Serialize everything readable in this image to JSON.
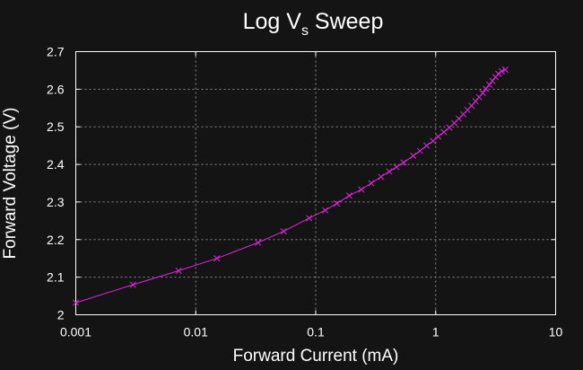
{
  "chart_data": {
    "type": "line",
    "title_main": "Log V",
    "title_sub": "s",
    "title_tail": " Sweep",
    "xlabel": "Forward Current (mA)",
    "ylabel": "Forward Voltage (V)",
    "xscale": "log",
    "xlim": [
      0.001,
      10
    ],
    "ylim": [
      2.0,
      2.7
    ],
    "grid": true,
    "legend": "none",
    "x_ticks": [
      0.001,
      0.01,
      0.1,
      1,
      10
    ],
    "x_tick_labels": [
      "0.001",
      "0.01",
      "0.1",
      "1",
      "10"
    ],
    "y_ticks": [
      2.0,
      2.1,
      2.2,
      2.3,
      2.4,
      2.5,
      2.6,
      2.7
    ],
    "y_tick_labels": [
      "2",
      "2.1",
      "2.2",
      "2.3",
      "2.4",
      "2.5",
      "2.6",
      "2.7"
    ],
    "colors": {
      "background": "#141414",
      "series": "#e024e0",
      "grid": "#8a8a8a",
      "text": "#ffffff"
    },
    "series": [
      {
        "marker": "x",
        "points": [
          [
            0.001,
            2.032
          ],
          [
            0.003,
            2.08
          ],
          [
            0.0072,
            2.117
          ],
          [
            0.015,
            2.15
          ],
          [
            0.033,
            2.192
          ],
          [
            0.054,
            2.222
          ],
          [
            0.088,
            2.257
          ],
          [
            0.12,
            2.278
          ],
          [
            0.15,
            2.296
          ],
          [
            0.19,
            2.317
          ],
          [
            0.24,
            2.333
          ],
          [
            0.29,
            2.35
          ],
          [
            0.35,
            2.367
          ],
          [
            0.41,
            2.381
          ],
          [
            0.47,
            2.393
          ],
          [
            0.54,
            2.405
          ],
          [
            0.65,
            2.423
          ],
          [
            0.74,
            2.436
          ],
          [
            0.84,
            2.45
          ],
          [
            0.95,
            2.462
          ],
          [
            1.05,
            2.474
          ],
          [
            1.17,
            2.486
          ],
          [
            1.3,
            2.498
          ],
          [
            1.43,
            2.51
          ],
          [
            1.56,
            2.522
          ],
          [
            1.7,
            2.533
          ],
          [
            1.84,
            2.545
          ],
          [
            1.99,
            2.556
          ],
          [
            2.15,
            2.568
          ],
          [
            2.3,
            2.579
          ],
          [
            2.47,
            2.59
          ],
          [
            2.62,
            2.601
          ],
          [
            2.8,
            2.612
          ],
          [
            2.97,
            2.622
          ],
          [
            3.15,
            2.632
          ],
          [
            3.33,
            2.641
          ],
          [
            3.55,
            2.648
          ],
          [
            3.8,
            2.652
          ]
        ]
      }
    ]
  }
}
